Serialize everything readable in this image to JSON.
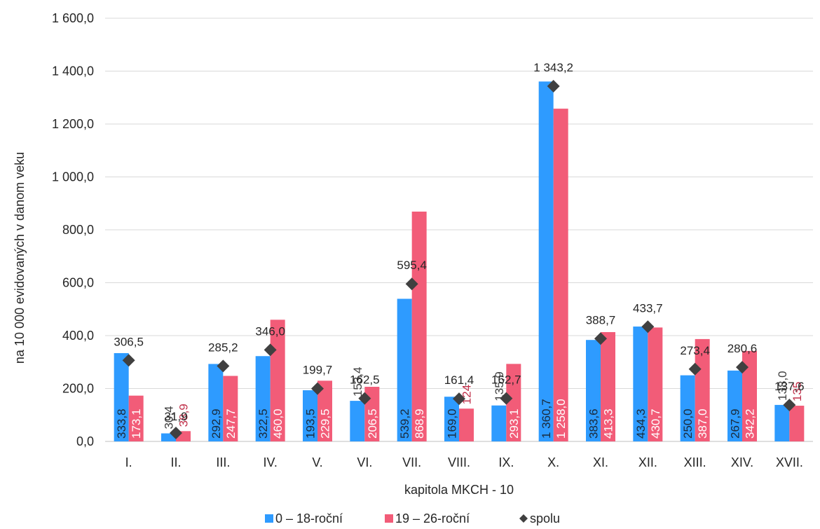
{
  "chart_data": {
    "type": "bar",
    "categories": [
      "I.",
      "II.",
      "III.",
      "IV.",
      "V.",
      "VI.",
      "VII.",
      "VIII.",
      "IX.",
      "X.",
      "XI.",
      "XII.",
      "XIII.",
      "XIV.",
      "XVII."
    ],
    "series": [
      {
        "name": "0 – 18-roční",
        "color": "#2E9BFF",
        "values": [
          333.8,
          30.4,
          292.9,
          322.5,
          193.5,
          153.4,
          539.2,
          169.0,
          135.9,
          1360.7,
          383.6,
          434.3,
          250.0,
          267.9,
          138.0
        ],
        "labels": [
          "333,8",
          "30,4",
          "292,9",
          "322,5",
          "193,5",
          "153,4",
          "539,2",
          "169,0",
          "135,9",
          "1 360,7",
          "383,6",
          "434,3",
          "250,0",
          "267,9",
          "138,0"
        ]
      },
      {
        "name": "19 – 26-roční",
        "color": "#F25C78",
        "values": [
          173.1,
          38.9,
          247.7,
          460.0,
          229.5,
          206.5,
          868.9,
          124,
          293.1,
          1258.0,
          413.3,
          430.7,
          387.0,
          342.2,
          135
        ],
        "labels": [
          "173,1",
          "38,9",
          "247,7",
          "460,0",
          "229,5",
          "206,5",
          "868,9",
          "124",
          "293,1",
          "1 258,0",
          "413,3",
          "430,7",
          "387,0",
          "342,2",
          "135"
        ]
      },
      {
        "name": "spolu",
        "color": "#404040",
        "marker": "diamond",
        "values": [
          306.5,
          31.9,
          285.2,
          346.0,
          199.7,
          162.5,
          595.4,
          161.4,
          162.7,
          1343.2,
          388.7,
          433.7,
          273.4,
          280.6,
          137.6
        ],
        "labels": [
          "306,5",
          "31,9",
          "285,2",
          "346,0",
          "199,7",
          "162,5",
          "595,4",
          "161,4",
          "162,7",
          "1 343,2",
          "388,7",
          "433,7",
          "273,4",
          "280,6",
          "137,6"
        ]
      }
    ],
    "xlabel": "kapitola MKCH - 10",
    "ylabel": "na 10 000 evidovaných v danom veku",
    "ylim": [
      0,
      1600
    ],
    "yticks": [
      0,
      200,
      400,
      600,
      800,
      1000,
      1200,
      1400,
      1600
    ],
    "ytick_labels": [
      "0,0",
      "200,0",
      "400,0",
      "600,0",
      "800,0",
      "1 000,0",
      "1 200,0",
      "1 400,0",
      "1 600,0"
    ],
    "grid": true,
    "legend_position": "bottom"
  }
}
